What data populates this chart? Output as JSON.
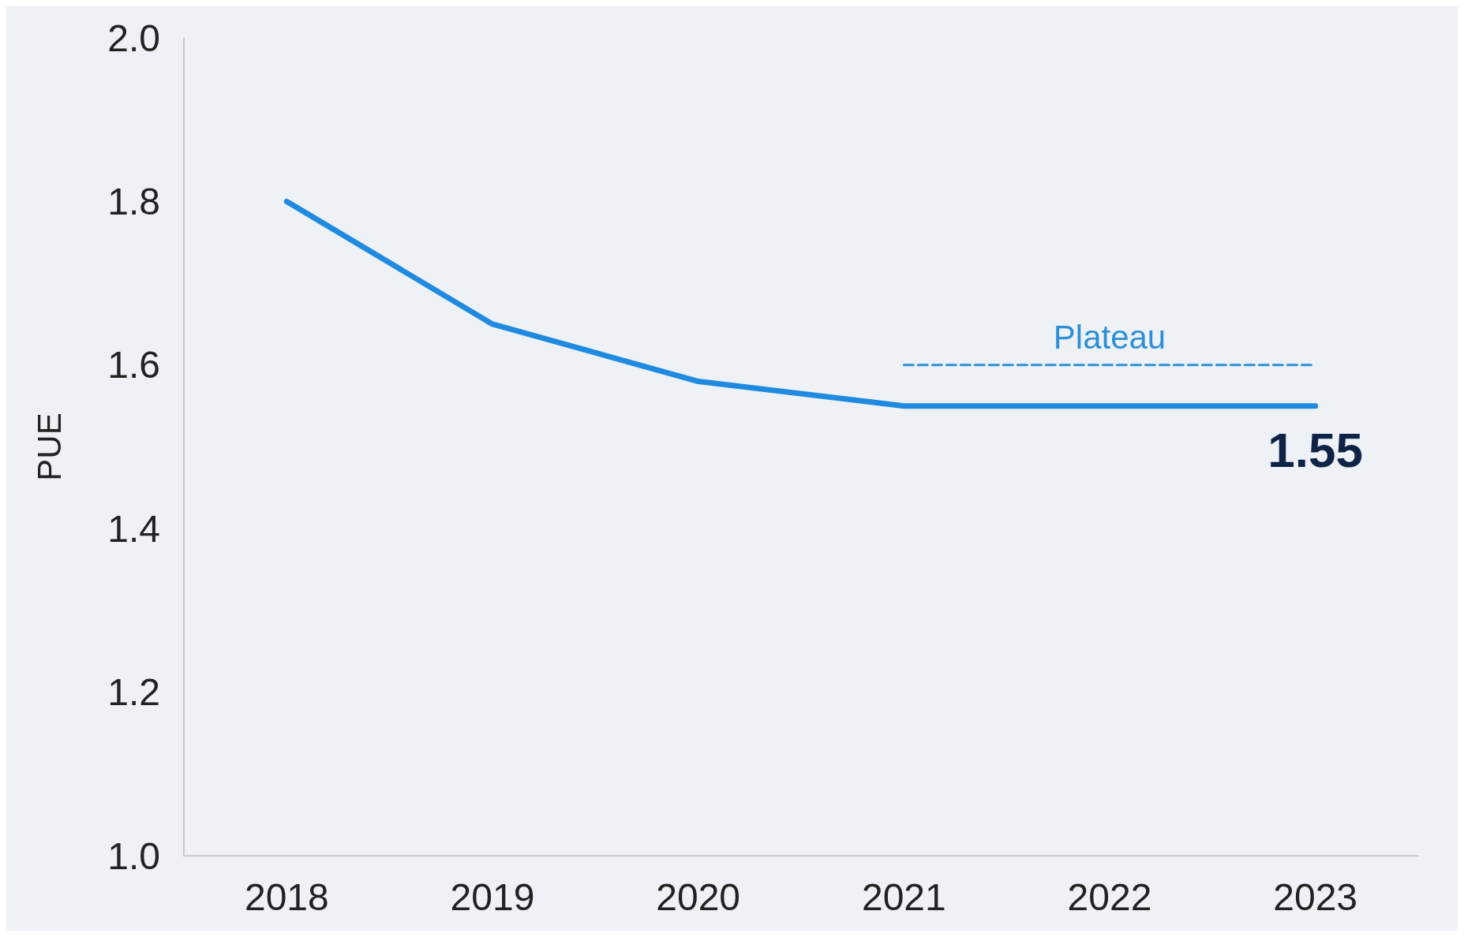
{
  "chart_data": {
    "type": "line",
    "ylabel": "PUE",
    "categories": [
      "2018",
      "2019",
      "2020",
      "2021",
      "2022",
      "2023"
    ],
    "ylim": [
      1.0,
      2.0
    ],
    "yticks": [
      {
        "value": 1,
        "label": "1.0"
      },
      1.2,
      1.4,
      1.6,
      1.8,
      {
        "value": 2,
        "label": "2.0"
      }
    ],
    "grid": false,
    "legend": false,
    "marker": "none",
    "series": [
      {
        "color": "#1f8ae0",
        "values": [
          1.8,
          1.65,
          1.58,
          1.55,
          1.55,
          1.55
        ],
        "value_labels": [
          null,
          null,
          null,
          null,
          null,
          "1.55"
        ],
        "line_style": "solid"
      },
      {
        "name": "Plateau",
        "type": "line",
        "color": "#2e8fd6",
        "values": [
          null,
          null,
          null,
          1.6,
          1.6,
          1.6
        ],
        "line_style": "dashed"
      }
    ]
  }
}
